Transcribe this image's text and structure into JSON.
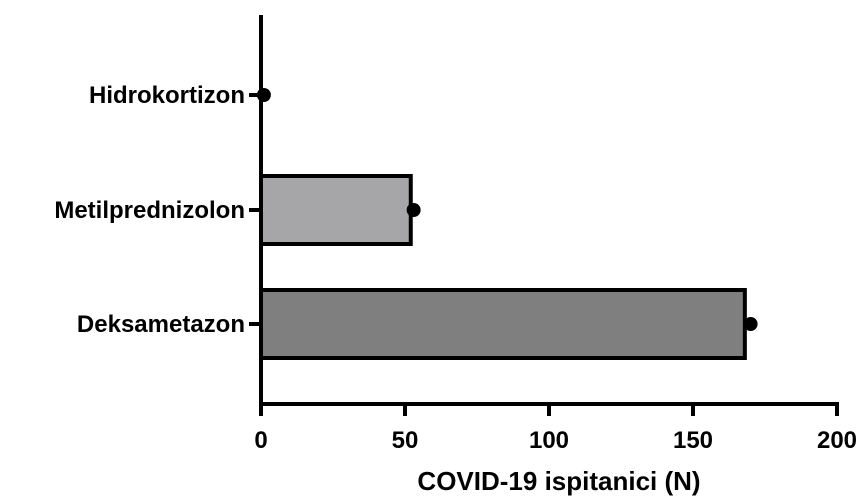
{
  "chart_data": {
    "type": "bar",
    "orientation": "horizontal",
    "categories": [
      "Hidrokortizon",
      "Metilprednizolon",
      "Deksametazon"
    ],
    "values": [
      0,
      52,
      168
    ],
    "points": [
      1,
      53,
      170
    ],
    "xlabel": "COVID-19 ispitanici (N)",
    "ylabel": "",
    "xlim": [
      0,
      200
    ],
    "xticks": [
      "0",
      "50",
      "100",
      "150",
      "200"
    ],
    "bar_colors": [
      "#ffffff",
      "#a6a6a8",
      "#7f7f7f"
    ],
    "grid": false
  }
}
